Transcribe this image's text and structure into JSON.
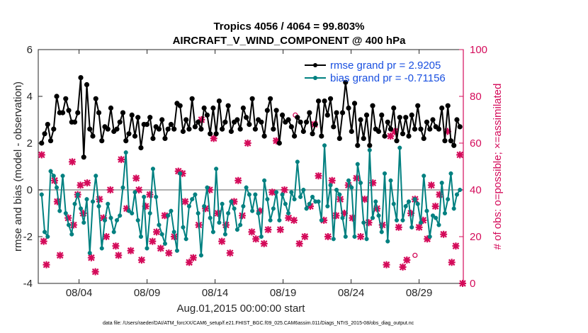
{
  "chart_data": {
    "type": "line",
    "title": "Tropics 4056 / 4064 = 99.803%",
    "subtitle": "AIRCRAFT_V_WIND_COMPONENT @ 400 hPa",
    "xlabel": "Aug.01,2015 00:00:00 start",
    "ylabel": "rmse and bias (model - observation)",
    "y2label": "# of obs: o=possible; ×=assimilated",
    "footer": "data file: /Users/raeder/DAI/ATM_forcXX/CAM6_setup/f.e21.FHIST_BGC.f09_025.CAM6assim.011/Diags_NTrS_2015-08/obs_diag_output.nc",
    "xlim": [
      0,
      31.25
    ],
    "ylim": [
      -4,
      6
    ],
    "y2lim": [
      0,
      100
    ],
    "x_ticks": [
      3,
      8,
      13,
      18,
      23,
      28
    ],
    "x_tick_labels": [
      "08/04",
      "08/09",
      "08/14",
      "08/19",
      "08/24",
      "08/29"
    ],
    "y_ticks": [
      -4,
      -2,
      0,
      2,
      4,
      6
    ],
    "y_tick_labels": [
      "-4",
      "-2",
      "0",
      "2",
      "4",
      "6"
    ],
    "y2_ticks": [
      0,
      20,
      40,
      60,
      80,
      100
    ],
    "y2_tick_labels": [
      "0",
      "20",
      "40",
      "60",
      "80",
      "100"
    ],
    "zero_line": 0,
    "legend_position": "top-right",
    "series": [
      {
        "name": "rmse grand pr = 2.9205",
        "color": "#000000",
        "marker": "star-dot",
        "values": [
          2.0,
          2.4,
          2.8,
          2.1,
          2.6,
          4.0,
          3.3,
          3.3,
          3.9,
          3.4,
          2.9,
          2.9,
          3.3,
          4.8,
          1.4,
          4.5,
          2.6,
          2.3,
          3.9,
          3.3,
          2.1,
          2.7,
          2.6,
          3.5,
          2.5,
          2.6,
          2.9,
          3.3,
          2.1,
          2.4,
          3.2,
          2.3,
          3.1,
          1.8,
          2.8,
          2.8,
          3.1,
          2.2,
          2.7,
          2.6,
          3.0,
          2.2,
          2.6,
          2.8,
          2.6,
          3.7,
          3.6,
          2.5,
          3.0,
          2.6,
          3.9,
          2.7,
          2.9,
          2.6,
          3.5,
          3.2,
          2.4,
          3.5,
          2.4,
          3.8,
          2.6,
          2.9,
          3.6,
          2.5,
          2.9,
          3.0,
          2.6,
          3.5,
          3.1,
          2.8,
          3.9,
          2.6,
          3.0,
          2.9,
          2.3,
          3.4,
          3.9,
          2.6,
          3.4,
          2.0,
          3.2,
          2.9,
          3.0,
          2.7,
          2.3,
          3.1,
          2.9,
          2.5,
          2.9,
          3.3,
          2.4,
          2.8,
          3.8,
          2.3,
          3.8,
          3.2,
          3.9,
          2.7,
          3.3,
          2.2,
          3.3,
          4.6,
          3.5,
          2.5,
          3.7,
          1.9,
          3.0,
          2.2,
          3.2,
          1.9,
          3.6,
          2.6,
          2.5,
          3.2,
          2.3,
          2.9,
          2.6,
          3.5,
          2.1,
          3.1,
          2.4,
          3.1,
          2.3,
          3.2,
          2.6,
          3.6,
          2.6,
          2.2,
          2.9,
          2.6,
          3.0,
          2.7,
          2.6,
          3.5,
          2.1,
          3.6,
          2.1,
          1.9,
          3.0,
          2.7
        ]
      },
      {
        "name": "bias grand pr = -0.71156",
        "color": "#008080",
        "marker": "dot",
        "values": [
          -0.2,
          -1.8,
          -2.0,
          0.8,
          0.6,
          0.1,
          -0.9,
          0.6,
          -1.0,
          -1.5,
          -1.9,
          -0.6,
          -0.2,
          -0.8,
          -1.4,
          -0.4,
          -2.7,
          -0.5,
          0.6,
          -0.7,
          -2.5,
          -1.3,
          -0.6,
          -1.2,
          -1.8,
          -1.3,
          -1.1,
          0.1,
          1.6,
          -0.9,
          -1.0,
          -0.1,
          -1.3,
          -2.0,
          -0.3,
          -2.5,
          -1.0,
          0.9,
          -0.3,
          -1.5,
          -1.9,
          -2.3,
          -1.1,
          -0.9,
          -1.8,
          -2.6,
          0.7,
          -1.6,
          -2.1,
          -0.7,
          -0.4,
          -0.2,
          -1.0,
          -2.8,
          -0.7,
          0.1,
          -1.2,
          -1.8,
          0.9,
          -1.4,
          -0.6,
          -1.9,
          -1.0,
          -0.5,
          -0.8,
          -1.7,
          -1.5,
          -0.7,
          0.1,
          -0.2,
          -0.9,
          -0.2,
          -1.0,
          -2.0,
          0.4,
          -0.4,
          -1.3,
          -0.8,
          -0.1,
          -1.3,
          -0.2,
          -0.6,
          -1.0,
          -0.1,
          -0.4,
          1.2,
          -0.3,
          0.0,
          -0.8,
          -0.6,
          -0.3,
          -0.5,
          -0.5,
          -1.3,
          1.9,
          -0.7,
          0.2,
          -2.1,
          0.0,
          -0.2,
          -1.2,
          -2.0,
          0.4,
          0.1,
          -2.0,
          1.1,
          0.3,
          -1.4,
          -2.1,
          1.7,
          -1.2,
          -0.5,
          -1.1,
          -1.8,
          0.7,
          -2.2,
          0.4,
          -0.6,
          -1.3,
          1.8,
          -1.3,
          -0.7,
          -0.5,
          -1.6,
          -0.4,
          -0.6,
          -1.4,
          0.6,
          -0.9,
          -2.0,
          -1.1,
          -1.2,
          -1.5,
          0.3,
          -1.0,
          -0.4,
          0.7,
          -0.8,
          -0.2,
          0.0
        ]
      },
      {
        "name": "obs assimilated",
        "axis": "right",
        "color": "#d40b5a",
        "marker": "x",
        "x": [
          0.25,
          0.4,
          0.6,
          1.2,
          1.4,
          1.6,
          2.2,
          2.5,
          2.6,
          2.9,
          3.1,
          3.3,
          3.6,
          3.9,
          4.2,
          4.5,
          4.8,
          5.0,
          5.3,
          5.7,
          5.9,
          6.1,
          6.5,
          6.8,
          7.2,
          7.4,
          7.6,
          7.9,
          8.2,
          8.4,
          8.7,
          9.0,
          9.3,
          9.6,
          10.0,
          10.3,
          10.6,
          10.8,
          11.1,
          11.4,
          11.8,
          12.0,
          12.3,
          12.6,
          12.9,
          13.2,
          13.5,
          13.8,
          14.1,
          14.4,
          14.7,
          15.0,
          15.4,
          15.7,
          16.0,
          16.3,
          16.6,
          16.9,
          17.2,
          17.5,
          17.8,
          18.1,
          18.4,
          18.8,
          19.2,
          19.6,
          20.0,
          20.3,
          20.6,
          21.0,
          21.3,
          21.6,
          21.9,
          22.2,
          22.5,
          22.8,
          23.1,
          23.4,
          23.7,
          24.0,
          24.3,
          24.6,
          24.9,
          25.3,
          25.6,
          25.9,
          26.2,
          26.5,
          26.8,
          27.1,
          27.4,
          27.7,
          28.0,
          28.3,
          28.6,
          28.9,
          29.2,
          29.5,
          29.8,
          30.1,
          30.4,
          30.7,
          31.0,
          31.2
        ],
        "values": [
          55,
          18,
          8,
          44,
          35,
          12,
          28,
          52,
          25,
          38,
          42,
          30,
          43,
          11,
          5,
          36,
          28,
          20,
          40,
          16,
          12,
          53,
          32,
          14,
          45,
          40,
          10,
          33,
          38,
          18,
          22,
          15,
          29,
          13,
          20,
          48,
          47,
          35,
          9,
          11,
          25,
          70,
          32,
          40,
          62,
          30,
          18,
          25,
          13,
          35,
          44,
          29,
          60,
          22,
          19,
          31,
          17,
          23,
          39,
          61,
          23,
          40,
          28,
          27,
          17,
          20,
          33,
          68,
          46,
          27,
          20,
          44,
          29,
          36,
          30,
          42,
          28,
          45,
          20,
          36,
          26,
          43,
          32,
          25,
          8,
          63,
          65,
          24,
          7,
          10,
          30,
          36,
          24,
          27,
          19,
          42,
          33,
          38,
          21,
          65,
          9,
          16,
          55,
          0
        ]
      },
      {
        "name": "obs possible (only where different)",
        "axis": "right",
        "color": "#d40b5a",
        "marker": "o",
        "x": [
          18.9,
          27.7
        ],
        "values": [
          72,
          12
        ]
      }
    ]
  }
}
